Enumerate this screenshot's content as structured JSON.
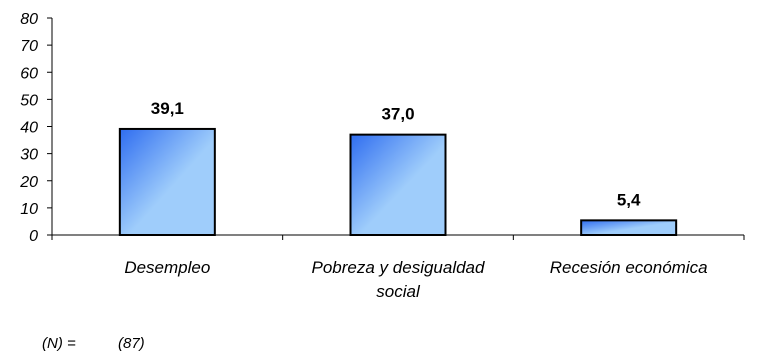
{
  "chart_data": {
    "type": "bar",
    "categories": [
      "Desempleo",
      "Pobreza y desigualdad social",
      "Recesión económica"
    ],
    "category_lines": [
      [
        "Desempleo"
      ],
      [
        "Pobreza y desigualdad",
        "social"
      ],
      [
        "Recesión económica"
      ]
    ],
    "values": [
      39.1,
      37.0,
      5.4
    ],
    "value_labels": [
      "39,1",
      "37,0",
      "5,4"
    ],
    "ylim": [
      0,
      80
    ],
    "yticks": [
      0,
      10,
      20,
      30,
      40,
      50,
      60,
      70,
      80
    ],
    "grid": false,
    "bar_colors": {
      "dark": "#2f6df0",
      "light": "#9fcdfb"
    }
  },
  "footnote": {
    "label": "(N) =",
    "value": "(87)"
  }
}
